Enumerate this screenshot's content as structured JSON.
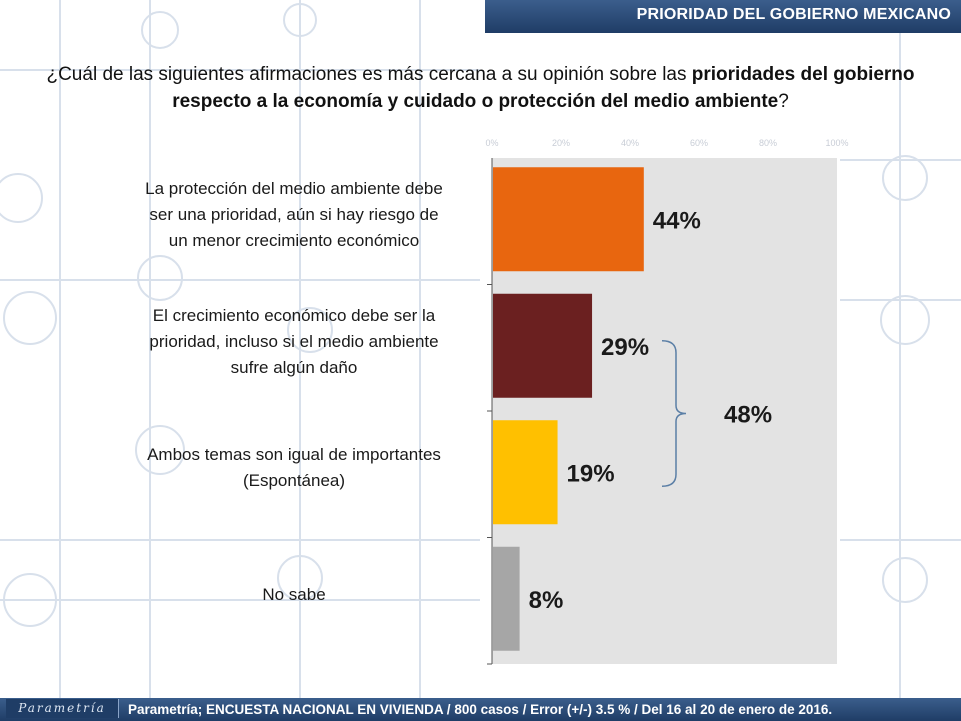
{
  "header": {
    "title": "PRIORIDAD DEL GOBIERNO MEXICANO"
  },
  "question": {
    "part1": "¿Cuál de las siguientes afirmaciones es más cercana a su opinión sobre las ",
    "bold": "prioridades del gobierno respecto a la economía y cuidado o protección del medio ambiente",
    "part2": "?"
  },
  "chart_data": {
    "type": "bar",
    "orientation": "horizontal",
    "categories": [
      "La protección del medio ambiente debe ser una prioridad, aún si hay riesgo de un menor crecimiento económico",
      "El crecimiento económico debe ser la prioridad, incluso si el medio ambiente sufre algún daño",
      "Ambos temas son igual de importantes (Espontánea)",
      "No sabe"
    ],
    "category_lines": [
      [
        "La protección del medio ambiente debe",
        "ser una prioridad, aún si hay riesgo de",
        "un menor crecimiento económico"
      ],
      [
        "El crecimiento económico debe ser la",
        "prioridad, incluso si el medio ambiente",
        "sufre algún daño"
      ],
      [
        "Ambos temas son igual de importantes",
        "(Espontánea)"
      ],
      [
        "No sabe"
      ]
    ],
    "values": [
      44,
      29,
      19,
      8
    ],
    "value_labels": [
      "44%",
      "29%",
      "19%",
      "8%"
    ],
    "colors": [
      "#e8660f",
      "#6b2020",
      "#ffc000",
      "#a6a6a6"
    ],
    "xlim": [
      0,
      100
    ],
    "ticks": [
      "0%",
      "20%",
      "40%",
      "60%",
      "80%",
      "100%"
    ],
    "bracket": {
      "label": "48%",
      "spans_categories": [
        1,
        2
      ]
    },
    "plot_background": "#e3e3e3"
  },
  "footer": {
    "logo": "Parametría",
    "source": "Parametría; ENCUESTA NACIONAL EN VIVIENDA / 800 casos / Error (+/-) 3.5 % / Del 16 al 20 de enero de 2016."
  }
}
